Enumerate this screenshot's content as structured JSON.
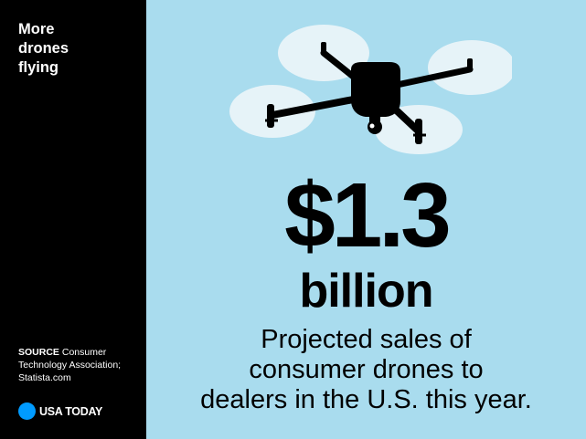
{
  "sidebar": {
    "headline": [
      "More",
      "drones",
      "flying"
    ],
    "source_label": "SOURCE",
    "source_text": " Consumer Technology Association; Statista.com",
    "brand": "USA TODAY"
  },
  "main": {
    "amount": "$1.3",
    "unit": "billion",
    "description": [
      "Projected sales of",
      "consumer drones to",
      "dealers in the U.S. this year."
    ]
  },
  "icons": {
    "illustration": "drone-icon",
    "brand_logo": "usatoday-dot-icon"
  },
  "colors": {
    "background": "#a9dcee",
    "sidebar": "#000000",
    "rotor_disc": "#e6f3f8",
    "brand_dot": "#009bff",
    "text": "#000000",
    "sidebar_text": "#ffffff"
  }
}
